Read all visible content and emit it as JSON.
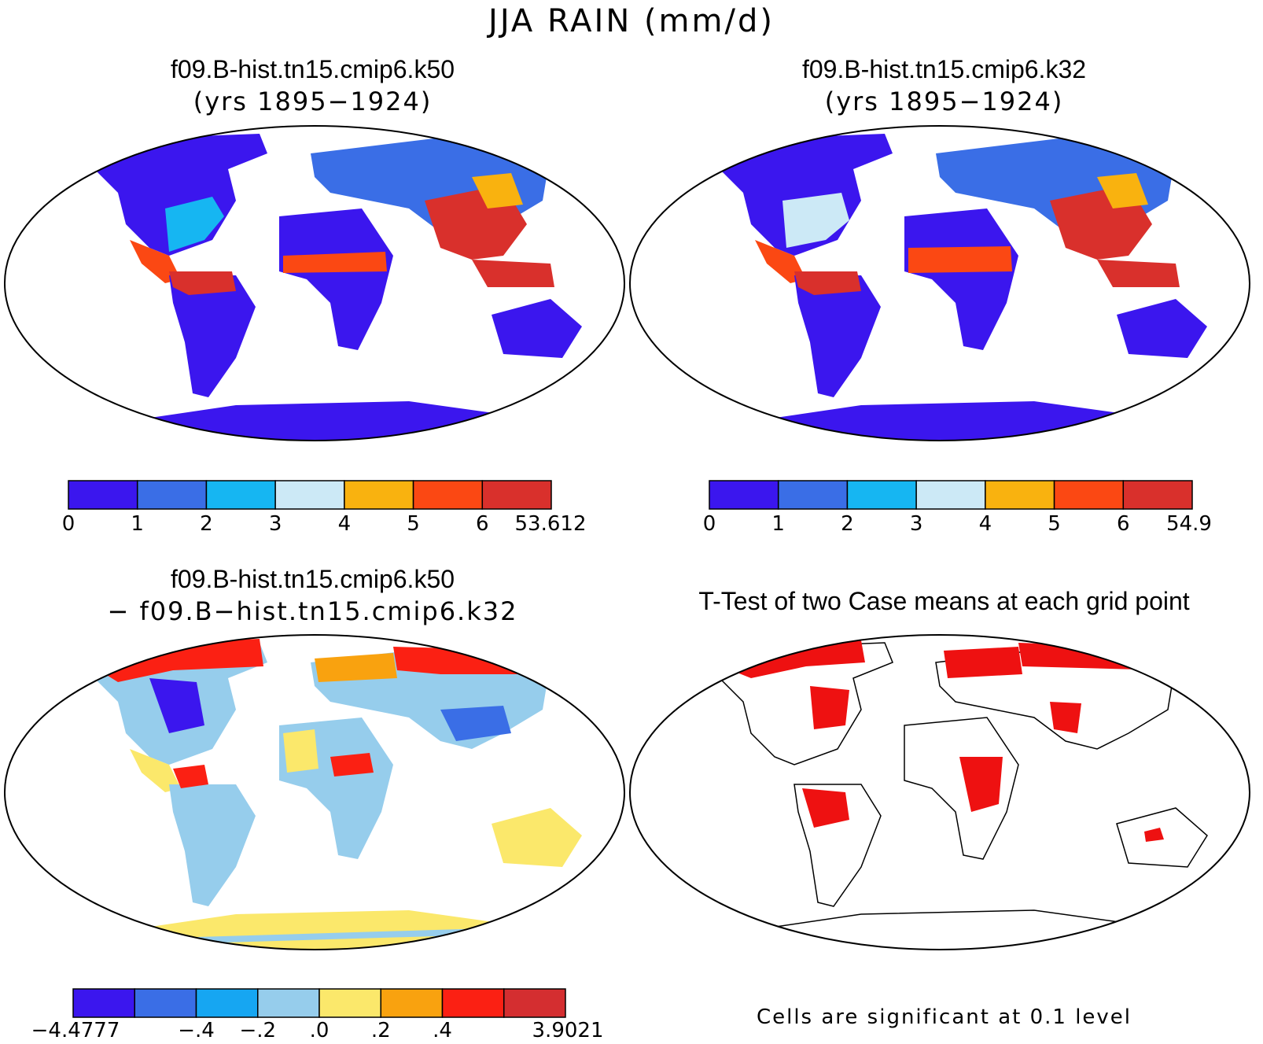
{
  "figure": {
    "title": "JJA RAIN (mm/d)"
  },
  "panels": {
    "top_left": {
      "title": "f09.B-hist.tn15.cmip6.k50",
      "subtitle": "(yrs 1895−1924)"
    },
    "top_right": {
      "title": "f09.B-hist.tn15.cmip6.k32",
      "subtitle": "(yrs 1895−1924)"
    },
    "bottom_left": {
      "title": "f09.B-hist.tn15.cmip6.k50",
      "subtitle": "− f09.B−hist.tn15.cmip6.k32"
    },
    "bottom_right": {
      "title": "T-Test of two Case means at each grid point",
      "note": "Cells are significant at 0.1 level"
    }
  },
  "colorbars": {
    "top_left": {
      "colors": [
        "#3b16ee",
        "#3a6ee6",
        "#16b6f2",
        "#cce9f6",
        "#f9b20f",
        "#fb4813",
        "#d9302c"
      ],
      "labels": [
        "0",
        "1",
        "2",
        "3",
        "4",
        "5",
        "6",
        "53.612"
      ]
    },
    "top_right": {
      "colors": [
        "#3b16ee",
        "#3a6ee6",
        "#16b6f2",
        "#cce9f6",
        "#f9b20f",
        "#fb4813",
        "#d9302c"
      ],
      "labels": [
        "0",
        "1",
        "2",
        "3",
        "4",
        "5",
        "6",
        "54.9"
      ]
    },
    "bottom_left": {
      "colors": [
        "#3b16ee",
        "#3a6ee6",
        "#16a6f2",
        "#96cdec",
        "#fbe86b",
        "#f9a20f",
        "#fb2013",
        "#d42e30"
      ],
      "labels": [
        "−4.4777",
        "",
        "−.4",
        "−.2",
        ".0",
        ".2",
        ".4",
        "",
        "3.9021"
      ]
    }
  },
  "colors": {
    "land_default": "#3b16ee",
    "significant": "#ee1111",
    "coast": "#000000"
  }
}
